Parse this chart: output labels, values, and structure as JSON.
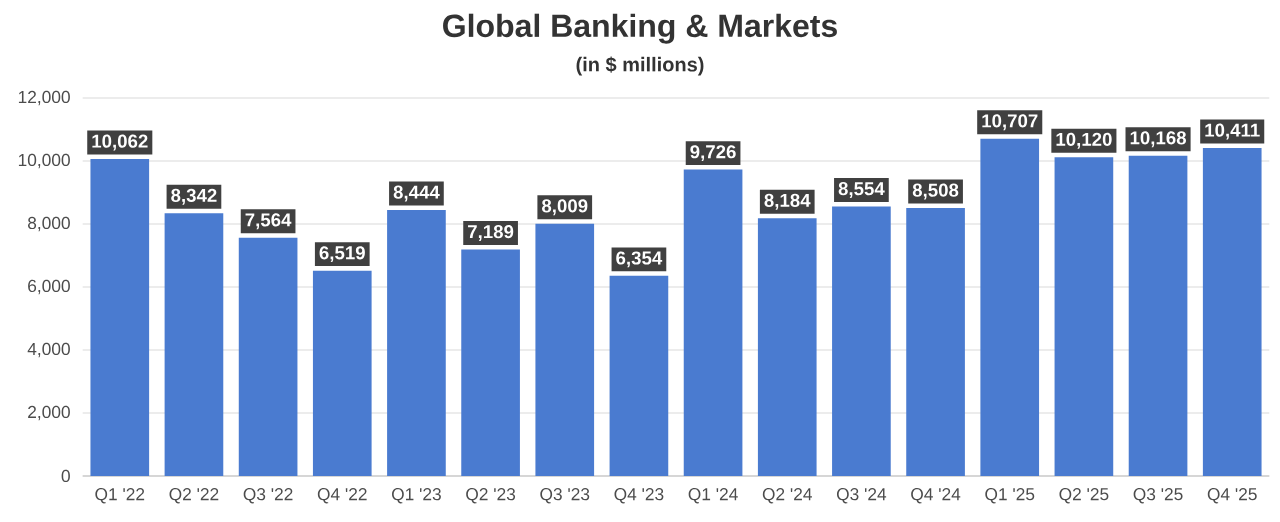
{
  "chart_data": {
    "type": "bar",
    "title": "Global Banking & Markets",
    "subtitle": "(in $ millions)",
    "categories": [
      "Q1 '22",
      "Q2 '22",
      "Q3 '22",
      "Q4 '22",
      "Q1 '23",
      "Q2 '23",
      "Q3 '23",
      "Q4 '23",
      "Q1 '24",
      "Q2 '24",
      "Q3 '24",
      "Q4 '24",
      "Q1 '25",
      "Q2 '25",
      "Q3 '25",
      "Q4 '25"
    ],
    "values": [
      10062,
      8342,
      7564,
      6519,
      8444,
      7189,
      8009,
      6354,
      9726,
      8184,
      8554,
      8508,
      10707,
      10120,
      10168,
      10411
    ],
    "value_labels": [
      "10,062",
      "8,342",
      "7,564",
      "6,519",
      "8,444",
      "7,189",
      "8,009",
      "6,354",
      "9,726",
      "8,184",
      "8,554",
      "8,508",
      "10,707",
      "10,120",
      "10,168",
      "10,411"
    ],
    "color": "#4a7bd0",
    "ylim": [
      0,
      12000
    ],
    "yticks": [
      {
        "value": 0,
        "label": "0"
      },
      {
        "value": 2000,
        "label": "2,000"
      },
      {
        "value": 4000,
        "label": "4,000"
      },
      {
        "value": 6000,
        "label": "6,000"
      },
      {
        "value": 8000,
        "label": "8,000"
      },
      {
        "value": 10000,
        "label": "10,000"
      },
      {
        "value": 12000,
        "label": "12,000"
      }
    ],
    "grid": "y"
  }
}
